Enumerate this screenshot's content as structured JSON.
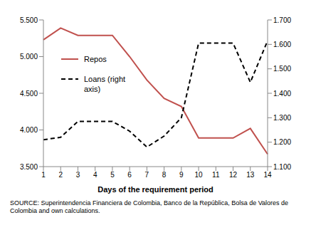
{
  "chart_data": {
    "type": "line",
    "x_label": "Days of the requirement period",
    "source": "SOURCE: Superintendencia Financiera de Colombia, Banco de la República, Bolsa de Valores de Colombia and own calculations.",
    "categories": [
      1,
      2,
      3,
      4,
      5,
      6,
      7,
      8,
      9,
      10,
      11,
      12,
      13,
      14
    ],
    "ylim": [
      3500,
      5500
    ],
    "yticks": [
      {
        "value": 3500,
        "label": "3.500"
      },
      {
        "value": 4000,
        "label": "4.000"
      },
      {
        "value": 4500,
        "label": "4.500"
      },
      {
        "value": 5000,
        "label": "5.000"
      },
      {
        "value": 5500,
        "label": "5.500"
      }
    ],
    "y2lim": [
      1100,
      1700
    ],
    "y2ticks": [
      {
        "value": 1100,
        "label": "1.100"
      },
      {
        "value": 1200,
        "label": "1.200"
      },
      {
        "value": 1300,
        "label": "1.300"
      },
      {
        "value": 1400,
        "label": "1.400"
      },
      {
        "value": 1500,
        "label": "1.500"
      },
      {
        "value": 1600,
        "label": "1.600"
      },
      {
        "value": 1700,
        "label": "1.700"
      }
    ],
    "grid": false,
    "legend": "upper left",
    "series": [
      {
        "name": "Repos",
        "color": "#c0504d",
        "line_style": "solid",
        "values": [
          5230,
          5390,
          5290,
          5290,
          5290,
          5000,
          4680,
          4430,
          4320,
          3890,
          3890,
          3890,
          4020,
          3670
        ]
      },
      {
        "name": "Loans (right axis)",
        "color": "#000000",
        "line_style": "dashed",
        "axis": "y2",
        "values": [
          1210,
          1220,
          1285,
          1285,
          1285,
          1245,
          1180,
          1225,
          1300,
          1605,
          1605,
          1605,
          1445,
          1615
        ]
      }
    ]
  }
}
